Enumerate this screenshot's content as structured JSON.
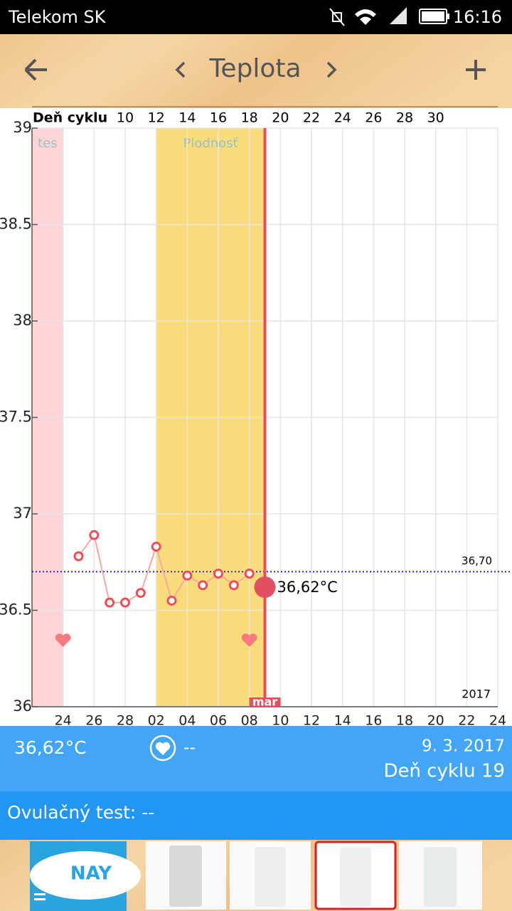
{
  "status_bar": {
    "carrier": "Telekom SK",
    "time": "16:16"
  },
  "toolbar": {
    "title": "Teplota"
  },
  "chart_data": {
    "type": "line",
    "x_axis_label": "Deň cyklu",
    "x": [
      7,
      8,
      9,
      10,
      11,
      12,
      13,
      14,
      15,
      16,
      17,
      18
    ],
    "series": [
      {
        "color": "#e8505b",
        "values": [
          36.78,
          36.89,
          36.54,
          36.54,
          36.59,
          36.83,
          36.55,
          36.68,
          36.63,
          36.69,
          36.63,
          36.69
        ]
      }
    ],
    "current": {
      "x": 19,
      "value": 36.62,
      "label": "36,62°C",
      "color": "#e05060",
      "marker_label": "mar"
    },
    "coverline": {
      "value": 36.7,
      "label": "36,70",
      "color": "#2a2ac8"
    },
    "bands": [
      {
        "from": 4,
        "to": 6,
        "color": "#ffd5d8",
        "label": "tes"
      },
      {
        "from": 12,
        "to": 19,
        "color": "#fbdc7a",
        "label": "Plodnosť"
      }
    ],
    "hearts": [
      6,
      18
    ],
    "year_label": "2017",
    "xlim": [
      4,
      34
    ],
    "xticks": [
      10,
      12,
      14,
      16,
      18,
      20,
      22,
      24,
      26,
      28,
      30
    ],
    "x2ticks": [
      {
        "value": 6,
        "label": "24"
      },
      {
        "value": 8,
        "label": "26"
      },
      {
        "value": 10,
        "label": "28"
      },
      {
        "value": 12,
        "label": "02"
      },
      {
        "value": 14,
        "label": "04"
      },
      {
        "value": 16,
        "label": "06"
      },
      {
        "value": 18,
        "label": "08"
      },
      {
        "value": 20,
        "label": "10"
      },
      {
        "value": 22,
        "label": "12"
      },
      {
        "value": 24,
        "label": "14"
      },
      {
        "value": 26,
        "label": "16"
      },
      {
        "value": 28,
        "label": "18"
      },
      {
        "value": 30,
        "label": "20"
      },
      {
        "value": 32,
        "label": "22"
      },
      {
        "value": 34,
        "label": "24"
      }
    ],
    "ylim": [
      36,
      39
    ],
    "yticks": [
      36,
      36.5,
      37,
      37.5,
      38,
      38.5,
      39
    ],
    "grid": true
  },
  "info": {
    "temperature": "36,62°C",
    "intercourse": "--",
    "date": "9. 3. 2017",
    "cycle_day": "Deň cyklu 19"
  },
  "ovulation_test": "Ovulačný test: --",
  "ad": {
    "logo": "NAY"
  }
}
